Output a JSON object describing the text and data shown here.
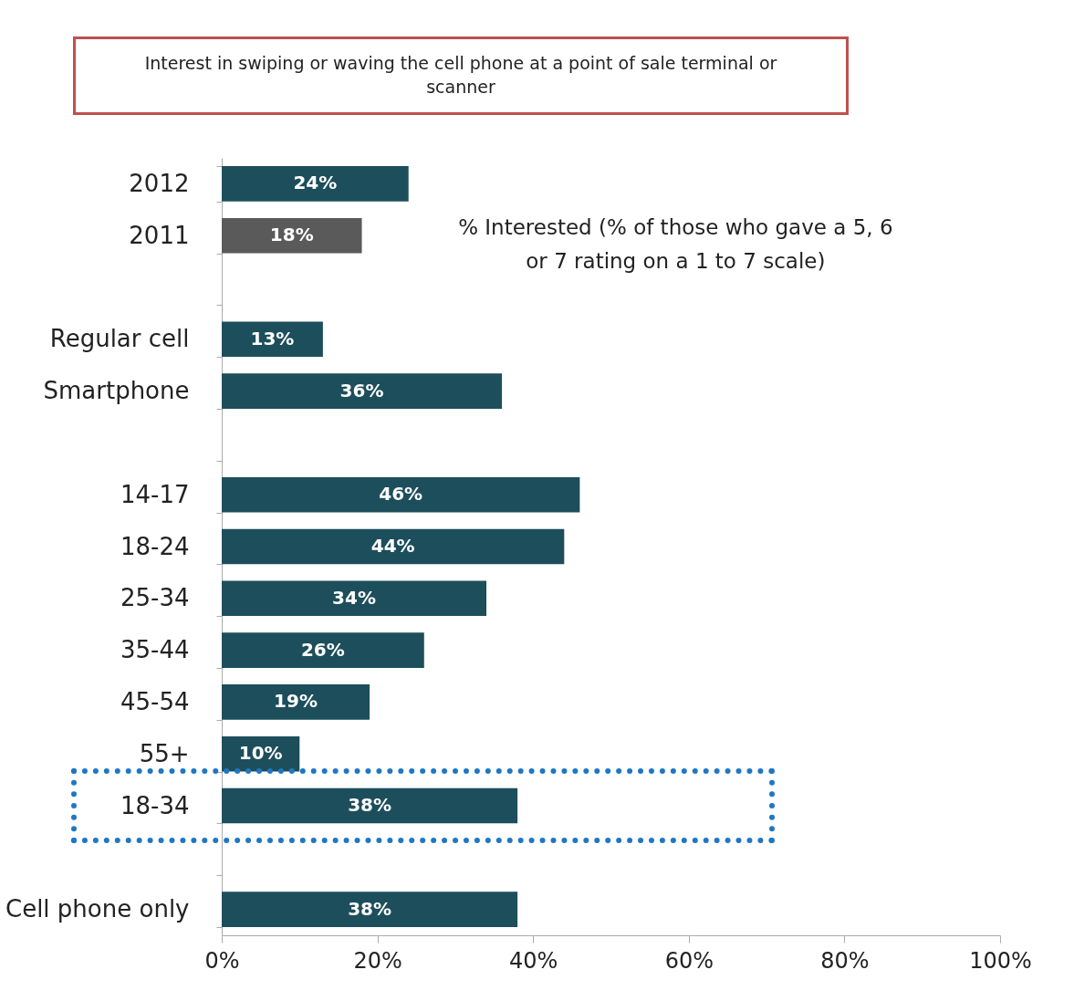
{
  "chart_data": {
    "type": "bar",
    "orientation": "horizontal",
    "title": "Interest in swiping or waving the cell phone at a point of sale terminal or scanner",
    "categories": [
      "2012",
      "2011",
      null,
      "Regular cell",
      "Smartphone",
      null,
      "14-17",
      "18-24",
      "25-34",
      "35-44",
      "45-54",
      "55+",
      "18-34",
      null,
      "Cell phone only"
    ],
    "values": [
      24,
      18,
      null,
      13,
      36,
      null,
      46,
      44,
      34,
      26,
      19,
      10,
      38,
      null,
      38
    ],
    "value_labels": [
      "24%",
      "18%",
      null,
      "13%",
      "36%",
      null,
      "46%",
      "44%",
      "34%",
      "26%",
      "19%",
      "10%",
      "38%",
      null,
      "38%"
    ],
    "colors": [
      "#1d4e5b",
      "#5a5a5a",
      null,
      "#1d4e5b",
      "#1d4e5b",
      null,
      "#1d4e5b",
      "#1d4e5b",
      "#1d4e5b",
      "#1d4e5b",
      "#1d4e5b",
      "#1d4e5b",
      "#1d4e5b",
      null,
      "#1d4e5b"
    ],
    "xlim": [
      0,
      100
    ],
    "xticks": [
      {
        "value": 0,
        "label": "0%"
      },
      {
        "value": 20,
        "label": "20%"
      },
      {
        "value": 40,
        "label": "40%"
      },
      {
        "value": 60,
        "label": "60%"
      },
      {
        "value": 80,
        "label": "80%"
      },
      {
        "value": 100,
        "label": "100%"
      }
    ],
    "annotations": [
      "% Interested (% of those who gave a 5, 6 or 7 rating on a 1 to 7 scale)"
    ],
    "grid": false
  }
}
